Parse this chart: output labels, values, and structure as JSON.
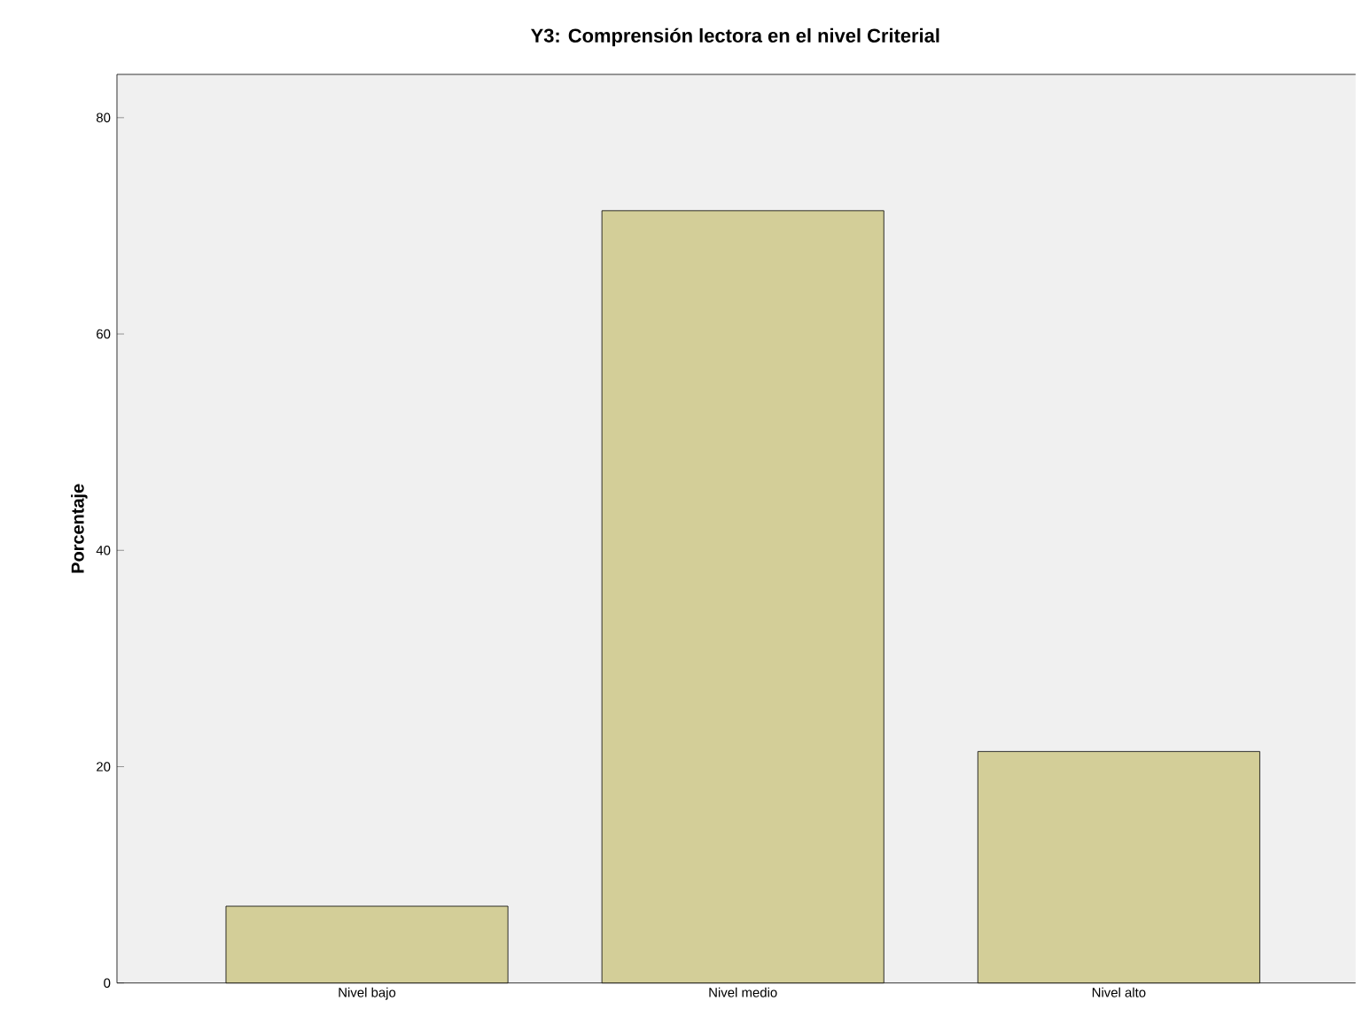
{
  "chart_data": {
    "type": "bar",
    "title": "Y3: Comprensión lectora en el nivel Criterial",
    "ylabel": "Porcentaje",
    "categories": [
      "Nivel bajo",
      "Nivel medio",
      "Nivel alto"
    ],
    "values": [
      7.1,
      71.4,
      21.4
    ],
    "color": "#d3ce98",
    "ylim": [
      0,
      84
    ],
    "yticks": [
      0,
      20,
      40,
      60,
      80
    ],
    "grid": false
  }
}
